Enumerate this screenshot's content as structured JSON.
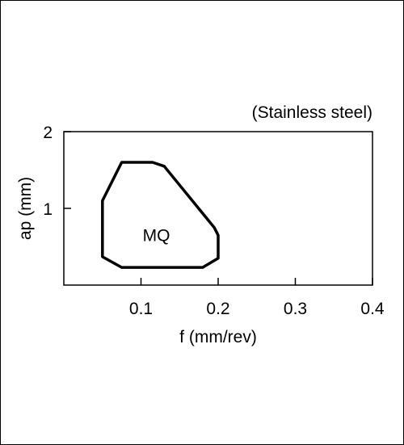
{
  "chart_data": {
    "type": "area",
    "annotation": "(Stainless steel)",
    "xlabel": "f (mm/rev)",
    "ylabel": "ap (mm)",
    "xlim": [
      0,
      0.4
    ],
    "ylim": [
      0,
      2
    ],
    "x_ticks": [
      0.1,
      0.2,
      0.3,
      0.4
    ],
    "x_tick_labels": [
      "0.1",
      "0.2",
      "0.3",
      "0.4"
    ],
    "y_ticks": [
      1,
      2
    ],
    "y_tick_labels": [
      "1",
      "2"
    ],
    "grid": false,
    "regions": [
      {
        "label": "MQ",
        "label_position": [
          0.12,
          0.65
        ],
        "boundary": [
          [
            0.075,
            1.6
          ],
          [
            0.115,
            1.6
          ],
          [
            0.13,
            1.55
          ],
          [
            0.195,
            0.75
          ],
          [
            0.2,
            0.65
          ],
          [
            0.2,
            0.35
          ],
          [
            0.18,
            0.23
          ],
          [
            0.075,
            0.23
          ],
          [
            0.05,
            0.37
          ],
          [
            0.05,
            1.1
          ]
        ]
      }
    ]
  }
}
